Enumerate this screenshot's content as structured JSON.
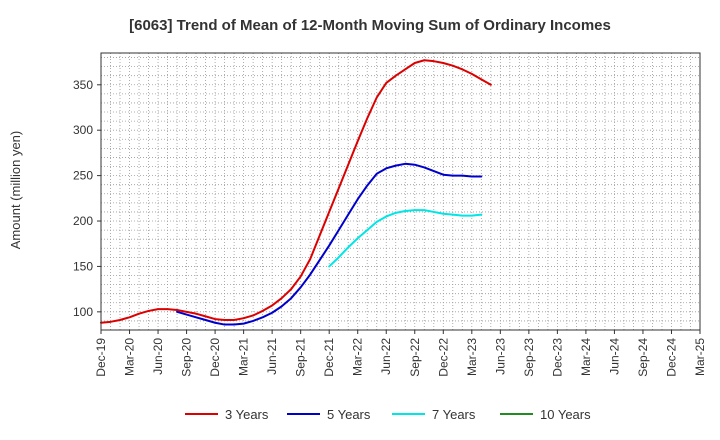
{
  "chart_data": {
    "type": "line",
    "title": "[6063]  Trend of Mean of 12-Month Moving Sum of Ordinary Incomes",
    "xlabel": "",
    "ylabel": "Amount (million yen)",
    "ylim": [
      80,
      385
    ],
    "yticks": [
      100,
      150,
      200,
      250,
      300,
      350
    ],
    "grid": true,
    "legend_position": "bottom",
    "x_labels": [
      "Dec-19",
      "Mar-20",
      "Jun-20",
      "Sep-20",
      "Dec-20",
      "Mar-21",
      "Jun-21",
      "Sep-21",
      "Dec-21",
      "Mar-22",
      "Jun-22",
      "Sep-22",
      "Dec-22",
      "Mar-23",
      "Jun-23",
      "Sep-23",
      "Dec-23",
      "Mar-24",
      "Jun-24",
      "Sep-24",
      "Dec-24",
      "Mar-25"
    ],
    "series": [
      {
        "name": "3 Years",
        "color": "#dd0000",
        "start_index": 0,
        "values": [
          88,
          89,
          91,
          94,
          98,
          101,
          103,
          103,
          102,
          100,
          98,
          95,
          92,
          91,
          91,
          93,
          96,
          101,
          107,
          115,
          125,
          139,
          158,
          184,
          210,
          236,
          262,
          288,
          313,
          336,
          352,
          360,
          367,
          374,
          377,
          376,
          374,
          371,
          367,
          362,
          356,
          350
        ]
      },
      {
        "name": "5 Years",
        "color": "#0000cc",
        "start_index": 8,
        "values": [
          100,
          97,
          94,
          91,
          88,
          86,
          86,
          87,
          90,
          94,
          99,
          106,
          115,
          127,
          141,
          157,
          173,
          190,
          207,
          224,
          239,
          252,
          258,
          261,
          263,
          262,
          259,
          255,
          251,
          250,
          250,
          249,
          249
        ]
      },
      {
        "name": "7 Years",
        "color": "#00e6e6",
        "start_index": 24,
        "values": [
          150,
          160,
          171,
          181,
          190,
          199,
          205,
          209,
          211,
          212,
          212,
          210,
          208,
          207,
          206,
          206,
          207
        ]
      },
      {
        "name": "10 Years",
        "color": "#228b22",
        "start_index": 0,
        "values": []
      }
    ]
  }
}
